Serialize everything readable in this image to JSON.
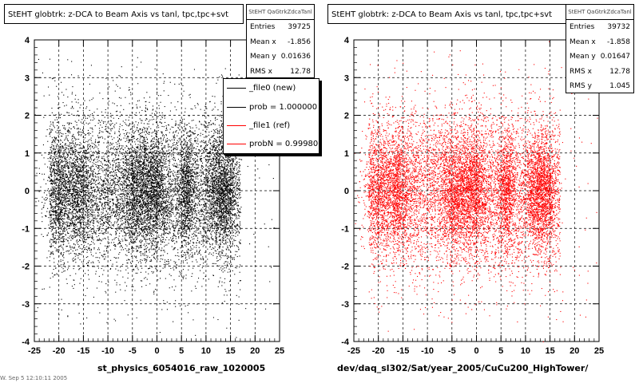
{
  "chart_data": [
    {
      "type": "scatter",
      "title": "StEHT globtrk: z-DCA to Beam Axis vs tanl, tpc,tpc+svt",
      "xlabel": "st_physics_6054016_raw_1020005",
      "ylabel": "",
      "xlim": [
        -25,
        25
      ],
      "ylim": [
        -4,
        4
      ],
      "xticks": [
        "-25",
        "-20",
        "-15",
        "-10",
        "-5",
        "0",
        "5",
        "10",
        "15",
        "20",
        "25"
      ],
      "yticks": [
        "-4",
        "-3",
        "-2",
        "-1",
        "0",
        "1",
        "2",
        "3",
        "4"
      ],
      "grid": true,
      "marker_color": "#000000",
      "stats": {
        "header": "StEHT QaGtrkZdcaTanl",
        "rows": [
          {
            "label": "Entries",
            "value": "39725"
          },
          {
            "label": "Mean x",
            "value": "-1.856"
          },
          {
            "label": "Mean y",
            "value": "0.01636"
          },
          {
            "label": "RMS x",
            "value": "12.78"
          }
        ]
      },
      "legend": {
        "placement": "top-right",
        "entries": [
          {
            "label": "_file0 (new)",
            "color": "#000000"
          },
          {
            "label": "prob = 1.000000",
            "color": "#000000"
          },
          {
            "label": "_file1 (ref)",
            "color": "#ff0000"
          },
          {
            "label": "probN = 0.999800",
            "color": "#ff0000"
          }
        ]
      },
      "clusters": [
        {
          "x": -20,
          "x_width": 1.6
        },
        {
          "x": -16,
          "x_width": 1.2
        },
        {
          "x": -5,
          "x_width": 1.3
        },
        {
          "x": -2.5,
          "x_width": 1.3
        },
        {
          "x": 0,
          "x_width": 1.2
        },
        {
          "x": 6,
          "x_width": 0.8
        },
        {
          "x": 12,
          "x_width": 1.2
        },
        {
          "x": 14,
          "x_width": 1.0
        }
      ]
    },
    {
      "type": "scatter",
      "title": "StEHT globtrk: z-DCA to Beam Axis vs tanl, tpc,tpc+svt",
      "xlabel": "dev/daq_sl302/Sat/year_2005/CuCu200_HighTower/",
      "ylabel": "",
      "xlim": [
        -25,
        25
      ],
      "ylim": [
        -4,
        4
      ],
      "xticks": [
        "-25",
        "-20",
        "-15",
        "-10",
        "-5",
        "0",
        "5",
        "10",
        "15",
        "20",
        "25"
      ],
      "yticks": [
        "-4",
        "-3",
        "-2",
        "-1",
        "0",
        "1",
        "2",
        "3",
        "4"
      ],
      "grid": true,
      "marker_color": "#ff0000",
      "stats": {
        "header": "StEHT QaGtrkZdcaTanl",
        "rows": [
          {
            "label": "Entries",
            "value": "39732"
          },
          {
            "label": "Mean x",
            "value": "-1.858"
          },
          {
            "label": "Mean y",
            "value": "0.01647"
          },
          {
            "label": "RMS x",
            "value": "12.78"
          },
          {
            "label": "RMS y",
            "value": "1.045"
          }
        ]
      },
      "clusters": [
        {
          "x": -20,
          "x_width": 1.6
        },
        {
          "x": -16,
          "x_width": 1.2
        },
        {
          "x": -5,
          "x_width": 1.3
        },
        {
          "x": -2.5,
          "x_width": 1.3
        },
        {
          "x": 0,
          "x_width": 1.2
        },
        {
          "x": 6,
          "x_width": 0.8
        },
        {
          "x": 12,
          "x_width": 1.2
        },
        {
          "x": 14,
          "x_width": 1.0
        }
      ]
    }
  ],
  "footer_text": "W. Sep  5 12:10:11 2005"
}
